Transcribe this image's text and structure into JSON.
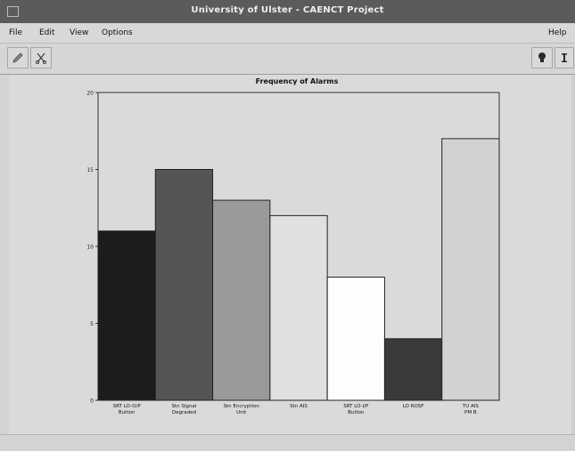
{
  "window": {
    "title": "University of Ulster - CAENCT Project"
  },
  "menubar": {
    "items": [
      "File",
      "Edit",
      "View",
      "Options"
    ],
    "help": "Help"
  },
  "toolbar": {
    "tool1_icon": "pencil-icon",
    "tool2_icon": "scissors-icon",
    "help_icon": "lightbulb-icon",
    "info_icon": "info-icon"
  },
  "chart_data": {
    "type": "bar",
    "title": "Frequency of Alarms",
    "xlabel": "",
    "ylabel": "",
    "ylim": [
      0,
      20
    ],
    "yticks": [
      0,
      5,
      10,
      15,
      20
    ],
    "grid": false,
    "categories": [
      "SRT LO-O/P Button",
      "Stn Signal Degraded",
      "Stn Encryption Unit",
      "Stn AIS",
      "SRT LO-I/P Button",
      "LO ROSF",
      "TU AIS PM B"
    ],
    "values": [
      11,
      15,
      13,
      12,
      8,
      4,
      17
    ],
    "colors": [
      "#1c1c1c",
      "#555555",
      "#9a9a9a",
      "#e0e0e0",
      "#fdfdfd",
      "#3a3a3a",
      "#d2d2d2"
    ]
  }
}
